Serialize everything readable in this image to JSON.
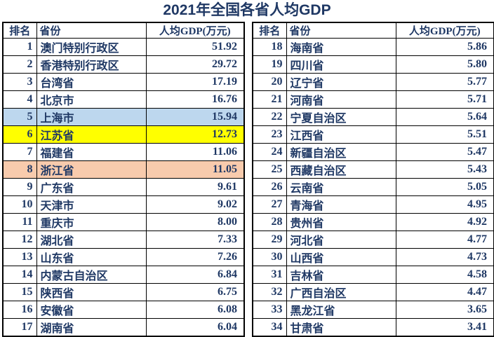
{
  "title": "2021年全国各省人均GDP",
  "colors": {
    "text": "#1F3864",
    "border": "#000000",
    "highlight_blue": "#BDD7EE",
    "highlight_yellow": "#FFFF00",
    "highlight_peach": "#F8CBAD"
  },
  "chart_data": {
    "type": "table",
    "title": "2021年全国各省人均GDP",
    "columns": [
      "排名",
      "省份",
      "人均GDP(万元)"
    ],
    "unit": "万元",
    "left_rows": [
      {
        "rank": 1,
        "province": "澳门特别行政区",
        "gdp": "51.92",
        "highlight": ""
      },
      {
        "rank": 2,
        "province": "香港特别行政区",
        "gdp": "29.72",
        "highlight": ""
      },
      {
        "rank": 3,
        "province": "台湾省",
        "gdp": "17.19",
        "highlight": ""
      },
      {
        "rank": 4,
        "province": "北京市",
        "gdp": "16.76",
        "highlight": ""
      },
      {
        "rank": 5,
        "province": "上海市",
        "gdp": "15.94",
        "highlight": "blue"
      },
      {
        "rank": 6,
        "province": "江苏省",
        "gdp": "12.73",
        "highlight": "yellow"
      },
      {
        "rank": 7,
        "province": "福建省",
        "gdp": "11.06",
        "highlight": ""
      },
      {
        "rank": 8,
        "province": "浙江省",
        "gdp": "11.05",
        "highlight": "peach"
      },
      {
        "rank": 9,
        "province": "广东省",
        "gdp": "9.61",
        "highlight": ""
      },
      {
        "rank": 10,
        "province": "天津市",
        "gdp": "9.02",
        "highlight": ""
      },
      {
        "rank": 11,
        "province": "重庆市",
        "gdp": "8.00",
        "highlight": ""
      },
      {
        "rank": 12,
        "province": "湖北省",
        "gdp": "7.33",
        "highlight": ""
      },
      {
        "rank": 13,
        "province": "山东省",
        "gdp": "7.26",
        "highlight": ""
      },
      {
        "rank": 14,
        "province": "内蒙古自治区",
        "gdp": "6.84",
        "highlight": ""
      },
      {
        "rank": 15,
        "province": "陕西省",
        "gdp": "6.75",
        "highlight": ""
      },
      {
        "rank": 16,
        "province": "安徽省",
        "gdp": "6.08",
        "highlight": ""
      },
      {
        "rank": 17,
        "province": "湖南省",
        "gdp": "6.04",
        "highlight": ""
      }
    ],
    "right_rows": [
      {
        "rank": 18,
        "province": "海南省",
        "gdp": "5.86",
        "highlight": ""
      },
      {
        "rank": 19,
        "province": "四川省",
        "gdp": "5.80",
        "highlight": ""
      },
      {
        "rank": 20,
        "province": "辽宁省",
        "gdp": "5.77",
        "highlight": ""
      },
      {
        "rank": 21,
        "province": "河南省",
        "gdp": "5.71",
        "highlight": ""
      },
      {
        "rank": 22,
        "province": "宁夏自治区",
        "gdp": "5.64",
        "highlight": ""
      },
      {
        "rank": 23,
        "province": "江西省",
        "gdp": "5.51",
        "highlight": ""
      },
      {
        "rank": 24,
        "province": "新疆自治区",
        "gdp": "5.47",
        "highlight": ""
      },
      {
        "rank": 25,
        "province": "西藏自治区",
        "gdp": "5.43",
        "highlight": ""
      },
      {
        "rank": 26,
        "province": "云南省",
        "gdp": "5.05",
        "highlight": ""
      },
      {
        "rank": 27,
        "province": "青海省",
        "gdp": "4.95",
        "highlight": ""
      },
      {
        "rank": 28,
        "province": "贵州省",
        "gdp": "4.92",
        "highlight": ""
      },
      {
        "rank": 29,
        "province": "河北省",
        "gdp": "4.77",
        "highlight": ""
      },
      {
        "rank": 30,
        "province": "山西省",
        "gdp": "4.73",
        "highlight": ""
      },
      {
        "rank": 31,
        "province": "吉林省",
        "gdp": "4.58",
        "highlight": ""
      },
      {
        "rank": 32,
        "province": "广西自治区",
        "gdp": "4.47",
        "highlight": ""
      },
      {
        "rank": 33,
        "province": "黑龙江省",
        "gdp": "3.65",
        "highlight": ""
      },
      {
        "rank": 34,
        "province": "甘肃省",
        "gdp": "3.41",
        "highlight": ""
      }
    ]
  }
}
